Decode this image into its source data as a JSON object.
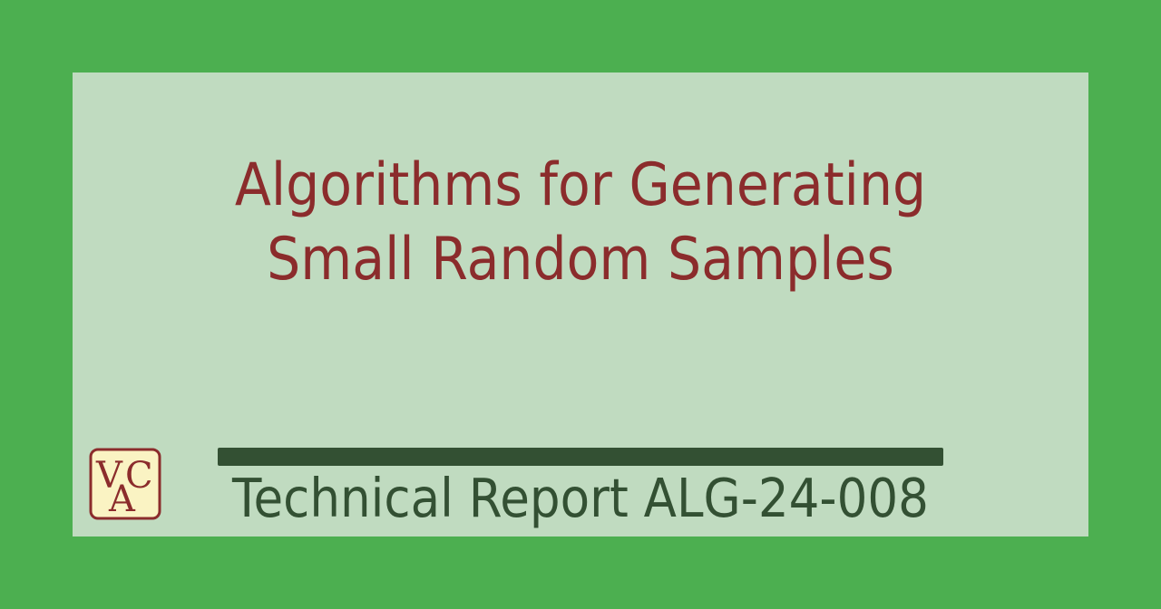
{
  "document": {
    "title_line_1": "Algorithms for Generating",
    "title_line_2": "Small Random Samples",
    "report_label": "Technical Report ALG-24-008"
  },
  "logo": {
    "letters": "VCA",
    "icon": "vca-monogram-logo"
  },
  "colors": {
    "page_background": "#4caf50",
    "card_background": "#c0dbc0",
    "title_text": "#8b2c2c",
    "report_text": "#335033",
    "rule_bar": "#335033",
    "logo_fill": "#faf3c3",
    "logo_stroke": "#8b2c2c"
  }
}
